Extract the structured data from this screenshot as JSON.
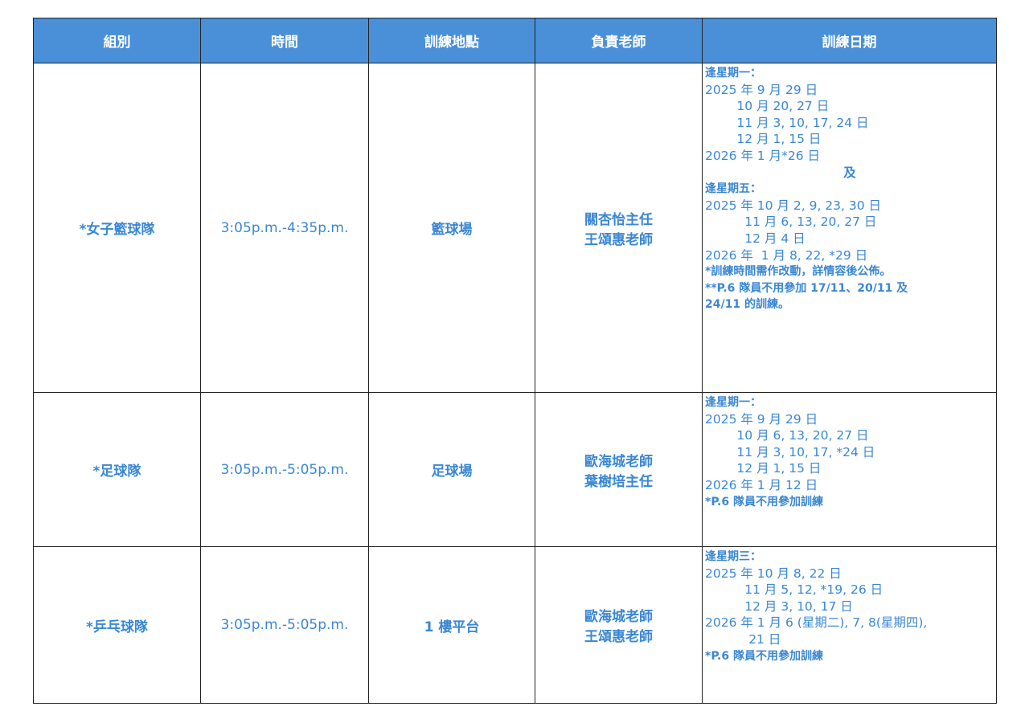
{
  "headers": [
    "組別",
    "時間",
    "訓練地點",
    "負責老師",
    "訓練日期"
  ],
  "rows": [
    {
      "group": "*女子籃球隊",
      "time": "3:05p.m.-4:35p.m.",
      "venue": "籃球場",
      "teachers": [
        "關杏怡主任",
        "王頌惠老師"
      ],
      "dates": [
        {
          "t": "逢星期一：",
          "s": "b"
        },
        {
          "t": "2025 年 9 月 29 日"
        },
        {
          "t": "        10 月 20, 27 日"
        },
        {
          "t": "        11 月 3, 10, 17, 24 日"
        },
        {
          "t": "        12 月 1, 15 日"
        },
        {
          "t": "2026 年 1 月*26 日"
        },
        {
          "t": "及",
          "s": "mid"
        },
        {
          "t": "逢星期五：",
          "s": "b"
        },
        {
          "t": "2025 年 10 月 2, 9, 23, 30 日"
        },
        {
          "t": "          11 月 6, 13, 20, 27 日"
        },
        {
          "t": "          12 月 4 日"
        },
        {
          "t": "2026 年  1 月 8, 22, *29 日"
        },
        {
          "t": "*訓練時間需作改動，詳情容後公佈。",
          "s": "b"
        },
        {
          "t": "**P.6 隊員不用參加 17/11、20/11 及",
          "s": "b"
        },
        {
          "t": "24/11 的訓練。",
          "s": "b"
        }
      ]
    },
    {
      "group": "*足球隊",
      "time": "3:05p.m.-5:05p.m.",
      "venue": "足球場",
      "teachers": [
        "歐海城老師",
        "葉樹培主任"
      ],
      "dates": [
        {
          "t": "逢星期一：",
          "s": "b"
        },
        {
          "t": "2025 年 9 月 29 日"
        },
        {
          "t": "        10 月 6, 13, 20, 27 日"
        },
        {
          "t": "        11 月 3, 10, 17, *24 日"
        },
        {
          "t": "        12 月 1, 15 日"
        },
        {
          "t": "2026 年 1 月 12 日"
        },
        {
          "t": "*P.6 隊員不用參加訓練",
          "s": "b"
        }
      ]
    },
    {
      "group": "*乒乓球隊",
      "time": "3:05p.m.-5:05p.m.",
      "venue": "1 樓平台",
      "teachers": [
        "歐海城老師",
        "王頌惠老師"
      ],
      "dates": [
        {
          "t": "逢星期三：",
          "s": "b"
        },
        {
          "t": "2025 年 10 月 8, 22 日"
        },
        {
          "t": "          11 月 5, 12, *19, 26 日"
        },
        {
          "t": "          12 月 3, 10, 17 日"
        },
        {
          "t": "2026 年 1 月 6 (星期二), 7, 8(星期四),"
        },
        {
          "t": "           21 日"
        },
        {
          "t": "*P.6 隊員不用參加訓練",
          "s": "b"
        }
      ]
    }
  ],
  "colors": {
    "header_bg": "#4a90d9",
    "text": "#3a87d4"
  }
}
